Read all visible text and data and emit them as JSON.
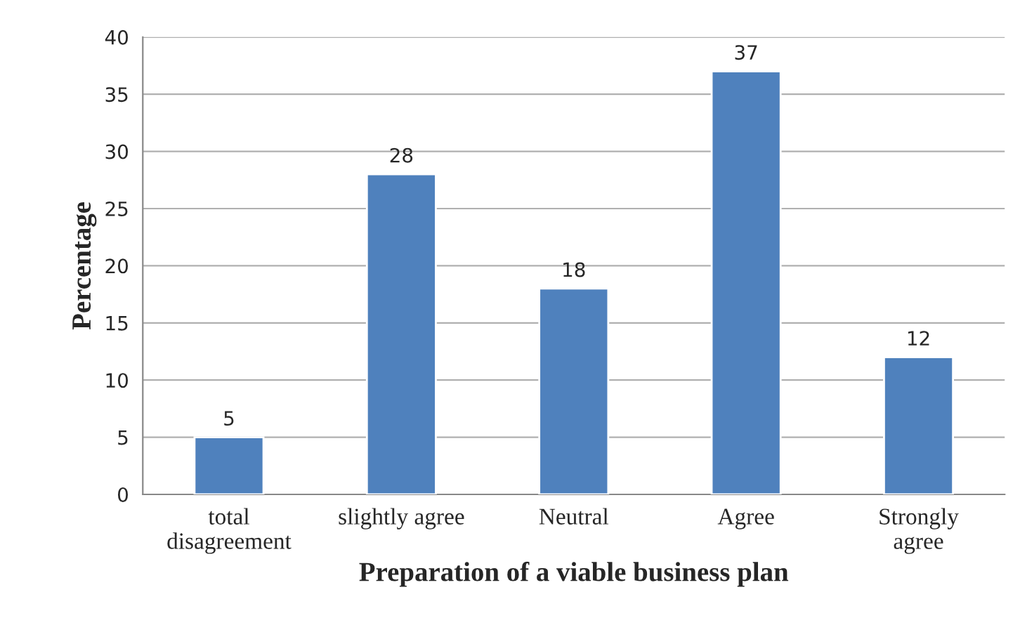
{
  "chart_data": {
    "type": "bar",
    "categories": [
      "total\ndisagreement",
      "slightly agree",
      "Neutral",
      "Agree",
      "Strongly\nagree"
    ],
    "values": [
      5,
      28,
      18,
      37,
      12
    ],
    "color": "#4f81bd",
    "xlabel": "Preparation of a viable business plan",
    "ylabel": "Percentage",
    "ylim": [
      0,
      40
    ],
    "yticks": [
      0,
      5,
      10,
      15,
      20,
      25,
      30,
      35,
      40
    ],
    "grid": "y",
    "data_labels": true
  }
}
